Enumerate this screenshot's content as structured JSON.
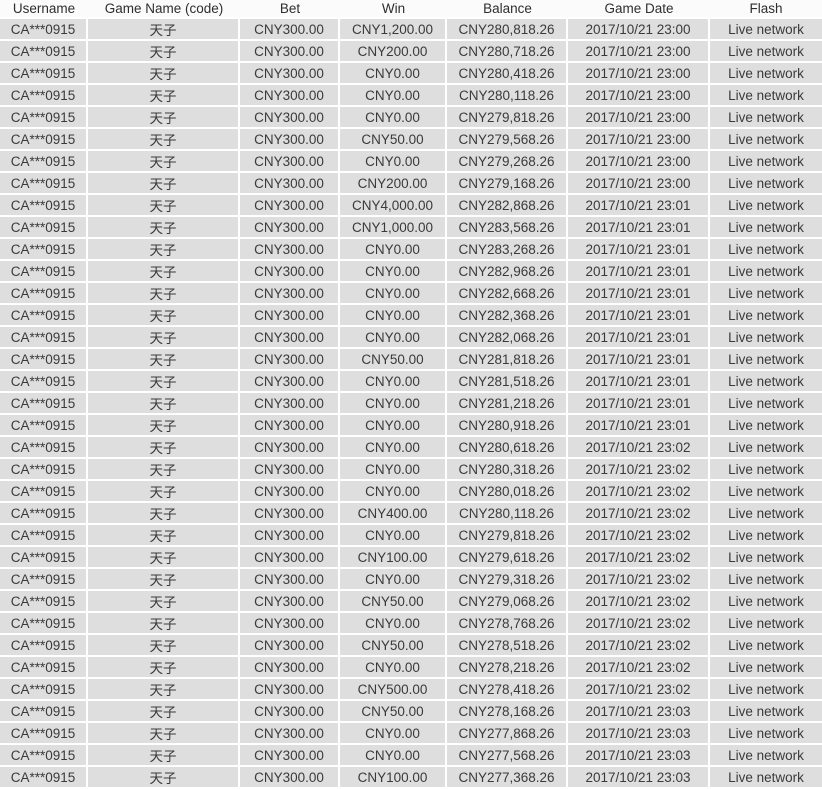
{
  "colors": {
    "row_background": "#dedede",
    "header_background": "#fbfbfb",
    "gridline": "#ffffff",
    "text": "#3a3a3a"
  },
  "table": {
    "columns": [
      {
        "key": "username",
        "label": "Username",
        "width": 88
      },
      {
        "key": "game-name",
        "label": "Game Name (code)",
        "width": 152
      },
      {
        "key": "bet",
        "label": "Bet",
        "width": 100
      },
      {
        "key": "win",
        "label": "Win",
        "width": 107
      },
      {
        "key": "balance",
        "label": "Balance",
        "width": 121
      },
      {
        "key": "game-date",
        "label": "Game Date",
        "width": 142
      },
      {
        "key": "flash",
        "label": "Flash",
        "width": 112
      }
    ],
    "rows": [
      [
        "CA***0915",
        "天子",
        "CNY300.00",
        "CNY1,200.00",
        "CNY280,818.26",
        "2017/10/21 23:00",
        "Live network"
      ],
      [
        "CA***0915",
        "天子",
        "CNY300.00",
        "CNY200.00",
        "CNY280,718.26",
        "2017/10/21 23:00",
        "Live network"
      ],
      [
        "CA***0915",
        "天子",
        "CNY300.00",
        "CNY0.00",
        "CNY280,418.26",
        "2017/10/21 23:00",
        "Live network"
      ],
      [
        "CA***0915",
        "天子",
        "CNY300.00",
        "CNY0.00",
        "CNY280,118.26",
        "2017/10/21 23:00",
        "Live network"
      ],
      [
        "CA***0915",
        "天子",
        "CNY300.00",
        "CNY0.00",
        "CNY279,818.26",
        "2017/10/21 23:00",
        "Live network"
      ],
      [
        "CA***0915",
        "天子",
        "CNY300.00",
        "CNY50.00",
        "CNY279,568.26",
        "2017/10/21 23:00",
        "Live network"
      ],
      [
        "CA***0915",
        "天子",
        "CNY300.00",
        "CNY0.00",
        "CNY279,268.26",
        "2017/10/21 23:00",
        "Live network"
      ],
      [
        "CA***0915",
        "天子",
        "CNY300.00",
        "CNY200.00",
        "CNY279,168.26",
        "2017/10/21 23:00",
        "Live network"
      ],
      [
        "CA***0915",
        "天子",
        "CNY300.00",
        "CNY4,000.00",
        "CNY282,868.26",
        "2017/10/21 23:01",
        "Live network"
      ],
      [
        "CA***0915",
        "天子",
        "CNY300.00",
        "CNY1,000.00",
        "CNY283,568.26",
        "2017/10/21 23:01",
        "Live network"
      ],
      [
        "CA***0915",
        "天子",
        "CNY300.00",
        "CNY0.00",
        "CNY283,268.26",
        "2017/10/21 23:01",
        "Live network"
      ],
      [
        "CA***0915",
        "天子",
        "CNY300.00",
        "CNY0.00",
        "CNY282,968.26",
        "2017/10/21 23:01",
        "Live network"
      ],
      [
        "CA***0915",
        "天子",
        "CNY300.00",
        "CNY0.00",
        "CNY282,668.26",
        "2017/10/21 23:01",
        "Live network"
      ],
      [
        "CA***0915",
        "天子",
        "CNY300.00",
        "CNY0.00",
        "CNY282,368.26",
        "2017/10/21 23:01",
        "Live network"
      ],
      [
        "CA***0915",
        "天子",
        "CNY300.00",
        "CNY0.00",
        "CNY282,068.26",
        "2017/10/21 23:01",
        "Live network"
      ],
      [
        "CA***0915",
        "天子",
        "CNY300.00",
        "CNY50.00",
        "CNY281,818.26",
        "2017/10/21 23:01",
        "Live network"
      ],
      [
        "CA***0915",
        "天子",
        "CNY300.00",
        "CNY0.00",
        "CNY281,518.26",
        "2017/10/21 23:01",
        "Live network"
      ],
      [
        "CA***0915",
        "天子",
        "CNY300.00",
        "CNY0.00",
        "CNY281,218.26",
        "2017/10/21 23:01",
        "Live network"
      ],
      [
        "CA***0915",
        "天子",
        "CNY300.00",
        "CNY0.00",
        "CNY280,918.26",
        "2017/10/21 23:01",
        "Live network"
      ],
      [
        "CA***0915",
        "天子",
        "CNY300.00",
        "CNY0.00",
        "CNY280,618.26",
        "2017/10/21 23:02",
        "Live network"
      ],
      [
        "CA***0915",
        "天子",
        "CNY300.00",
        "CNY0.00",
        "CNY280,318.26",
        "2017/10/21 23:02",
        "Live network"
      ],
      [
        "CA***0915",
        "天子",
        "CNY300.00",
        "CNY0.00",
        "CNY280,018.26",
        "2017/10/21 23:02",
        "Live network"
      ],
      [
        "CA***0915",
        "天子",
        "CNY300.00",
        "CNY400.00",
        "CNY280,118.26",
        "2017/10/21 23:02",
        "Live network"
      ],
      [
        "CA***0915",
        "天子",
        "CNY300.00",
        "CNY0.00",
        "CNY279,818.26",
        "2017/10/21 23:02",
        "Live network"
      ],
      [
        "CA***0915",
        "天子",
        "CNY300.00",
        "CNY100.00",
        "CNY279,618.26",
        "2017/10/21 23:02",
        "Live network"
      ],
      [
        "CA***0915",
        "天子",
        "CNY300.00",
        "CNY0.00",
        "CNY279,318.26",
        "2017/10/21 23:02",
        "Live network"
      ],
      [
        "CA***0915",
        "天子",
        "CNY300.00",
        "CNY50.00",
        "CNY279,068.26",
        "2017/10/21 23:02",
        "Live network"
      ],
      [
        "CA***0915",
        "天子",
        "CNY300.00",
        "CNY0.00",
        "CNY278,768.26",
        "2017/10/21 23:02",
        "Live network"
      ],
      [
        "CA***0915",
        "天子",
        "CNY300.00",
        "CNY50.00",
        "CNY278,518.26",
        "2017/10/21 23:02",
        "Live network"
      ],
      [
        "CA***0915",
        "天子",
        "CNY300.00",
        "CNY0.00",
        "CNY278,218.26",
        "2017/10/21 23:02",
        "Live network"
      ],
      [
        "CA***0915",
        "天子",
        "CNY300.00",
        "CNY500.00",
        "CNY278,418.26",
        "2017/10/21 23:02",
        "Live network"
      ],
      [
        "CA***0915",
        "天子",
        "CNY300.00",
        "CNY50.00",
        "CNY278,168.26",
        "2017/10/21 23:03",
        "Live network"
      ],
      [
        "CA***0915",
        "天子",
        "CNY300.00",
        "CNY0.00",
        "CNY277,868.26",
        "2017/10/21 23:03",
        "Live network"
      ],
      [
        "CA***0915",
        "天子",
        "CNY300.00",
        "CNY0.00",
        "CNY277,568.26",
        "2017/10/21 23:03",
        "Live network"
      ],
      [
        "CA***0915",
        "天子",
        "CNY300.00",
        "CNY100.00",
        "CNY277,368.26",
        "2017/10/21 23:03",
        "Live network"
      ]
    ]
  }
}
